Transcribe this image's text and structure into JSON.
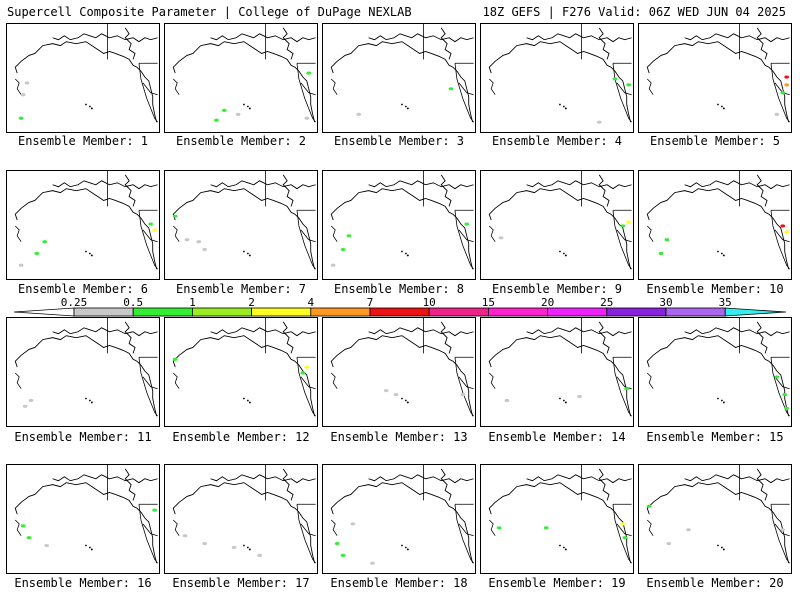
{
  "header": {
    "title": "Supercell Composite Parameter | College of DuPage NEXLAB",
    "run_info": "18Z GEFS | F276 Valid: 06Z WED JUN 04 2025"
  },
  "members": [
    {
      "label": "Ensemble Member: 1"
    },
    {
      "label": "Ensemble Member: 2"
    },
    {
      "label": "Ensemble Member: 3"
    },
    {
      "label": "Ensemble Member: 4"
    },
    {
      "label": "Ensemble Member: 5"
    },
    {
      "label": "Ensemble Member: 6"
    },
    {
      "label": "Ensemble Member: 7"
    },
    {
      "label": "Ensemble Member: 8"
    },
    {
      "label": "Ensemble Member: 9"
    },
    {
      "label": "Ensemble Member: 10"
    },
    {
      "label": "Ensemble Member: 11"
    },
    {
      "label": "Ensemble Member: 12"
    },
    {
      "label": "Ensemble Member: 13"
    },
    {
      "label": "Ensemble Member: 14"
    },
    {
      "label": "Ensemble Member: 15"
    },
    {
      "label": "Ensemble Member: 16"
    },
    {
      "label": "Ensemble Member: 17"
    },
    {
      "label": "Ensemble Member: 18"
    },
    {
      "label": "Ensemble Member: 19"
    },
    {
      "label": "Ensemble Member: 20"
    }
  ],
  "colorbar": {
    "ticks": [
      "0.25",
      "0.5",
      "1",
      "2",
      "4",
      "7",
      "10",
      "15",
      "20",
      "25",
      "30",
      "35"
    ],
    "colors": [
      "#c8c8c8",
      "#33ee33",
      "#99ee22",
      "#ffff22",
      "#ff9922",
      "#ee1111",
      "#ee2288",
      "#ff22cc",
      "#ee22ff",
      "#8822dd",
      "#aa66ee",
      "#33eeee"
    ]
  }
}
